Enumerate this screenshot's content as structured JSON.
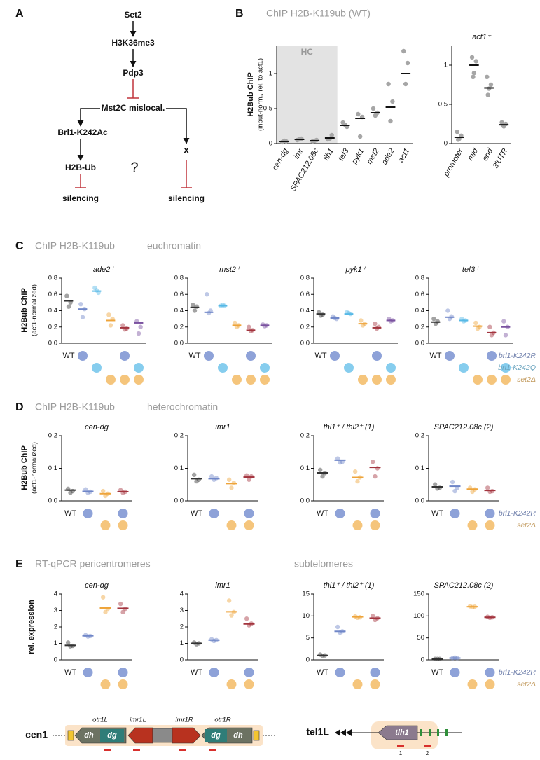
{
  "panel_a": {
    "letter": "A",
    "nodes": [
      "Set2",
      "H3K36me3",
      "Pdp3",
      "Mst2C mislocal.",
      "Brl1-K242Ac",
      "x",
      "H2B-Ub",
      "?",
      "silencing",
      "silencing"
    ]
  },
  "panel_b": {
    "letter": "B",
    "title": "ChIP H2B-K119ub (WT)",
    "ylabel": "H2Bub ChIP",
    "ylabel2": "(input-norm., rel. to act1)"
  },
  "panel_c": {
    "letter": "C",
    "title": "ChIP H2B-K119ub",
    "subtitle": "euchromatin",
    "ylabel": "H2Bub ChIP",
    "ylabel2": "(act1-normalized)",
    "genotypes": [
      {
        "name": "brl1-K242R",
        "color": "#8ea2d8"
      },
      {
        "name": "brl1-K242Q",
        "color": "#86cdee"
      },
      {
        "name": "set2Δ",
        "color": "#f5c57c"
      }
    ]
  },
  "panel_d": {
    "letter": "D",
    "title": "ChIP H2B-K119ub",
    "subtitle": "heterochromatin",
    "ylabel": "H2Bub ChIP",
    "ylabel2": "(act1-normalized)",
    "genotypes": [
      {
        "name": "brl1-K242R",
        "color": "#8ea2d8"
      },
      {
        "name": "set2Δ",
        "color": "#f5c57c"
      }
    ]
  },
  "panel_e": {
    "letter": "E",
    "title": "RT-qPCR pericentromeres",
    "subtitle": "subtelomeres",
    "ylabel": "rel. expression",
    "genotypes": [
      {
        "name": "brl1-K242R",
        "color": "#8ea2d8"
      },
      {
        "name": "set2Δ",
        "color": "#f5c57c"
      }
    ],
    "cen1": {
      "label": "cen1",
      "otr1L": "otr1L",
      "imr1L": "imr1L",
      "imr1R": "imr1R",
      "otr1R": "otr1R",
      "dh_left": "dh",
      "dg_left": "dg",
      "dg_right": "dg",
      "dh_right": "dh"
    },
    "tel1L": {
      "label": "tel1L",
      "gene": "tlh1",
      "site1": "1",
      "site2": "2"
    }
  },
  "chart_data": [
    {
      "type": "dot",
      "categories": [
        "cen-dg",
        "imr",
        "SPAC212.08c",
        "tlh1",
        "tef3",
        "pyk1",
        "mst2",
        "ade2",
        "act1"
      ],
      "values": [
        0.03,
        0.06,
        0.04,
        0.08,
        0.26,
        0.36,
        0.44,
        0.52,
        1.0
      ],
      "points": [
        [
          0.02,
          0.03,
          0.04
        ],
        [
          0.05,
          0.07,
          0.06
        ],
        [
          0.03,
          0.05,
          0.04
        ],
        [
          0.06,
          0.12,
          0.07
        ],
        [
          0.3,
          0.24,
          0.27
        ],
        [
          0.42,
          0.38,
          0.1
        ],
        [
          0.5,
          0.44,
          0.4
        ],
        [
          0.85,
          0.6,
          0.32
        ],
        [
          1.32,
          1.15,
          0.85
        ]
      ],
      "color": "#111111",
      "point_color": "#a6a6a6",
      "ylim": [
        0,
        1.4
      ],
      "yticks": [
        0,
        0.5,
        1
      ],
      "shaded": {
        "label": "HC",
        "span": [
          0,
          3
        ]
      }
    },
    {
      "type": "dot",
      "title": "act1⁺",
      "categories": [
        "promoter",
        "mid",
        "end",
        "3'UTR"
      ],
      "values": [
        0.08,
        1.0,
        0.71,
        0.24
      ],
      "points": [
        [
          0.15,
          0.1,
          0.06,
          0.05
        ],
        [
          1.1,
          1.05,
          0.9,
          0.85
        ],
        [
          0.85,
          0.75,
          0.7,
          0.62
        ],
        [
          0.27,
          0.25,
          0.22,
          0.23
        ]
      ],
      "color": "#111111",
      "point_color": "#a6a6a6",
      "ylim": [
        0,
        1.25
      ],
      "yticks": [
        0,
        0.5,
        1
      ]
    },
    {
      "type": "dot",
      "title": "ade2⁺",
      "categories": [
        "WT",
        null,
        null,
        null,
        null,
        null
      ],
      "values": [
        0.52,
        0.42,
        0.64,
        0.28,
        0.19,
        0.25
      ],
      "points": [
        [
          0.58,
          0.5,
          0.45
        ],
        [
          0.48,
          0.42,
          0.32
        ],
        [
          0.68,
          0.62,
          0.65
        ],
        [
          0.35,
          0.3,
          0.22
        ],
        [
          0.22,
          0.18,
          0.17
        ],
        [
          0.27,
          0.2,
          0.12
        ]
      ],
      "colors": [
        "#333333",
        "#6f86c8",
        "#56b9e6",
        "#eea43a",
        "#a3343e",
        "#7a52a0"
      ],
      "ylim": [
        0,
        0.8
      ],
      "yticks": [
        {
          "value": 0,
          "label": "0.0"
        },
        0.2,
        0.4,
        0.6,
        0.8
      ],
      "genotype_marks": [
        [
          false,
          true,
          false,
          false,
          true,
          false
        ],
        [
          false,
          false,
          true,
          false,
          false,
          true
        ],
        [
          false,
          false,
          false,
          true,
          true,
          true
        ]
      ]
    },
    {
      "type": "dot",
      "title": "mst2⁺",
      "categories": [
        "WT",
        null,
        null,
        null,
        null,
        null
      ],
      "values": [
        0.44,
        0.38,
        0.46,
        0.22,
        0.16,
        0.22
      ],
      "points": [
        [
          0.47,
          0.45,
          0.4
        ],
        [
          0.6,
          0.4,
          0.37
        ],
        [
          0.46,
          0.46,
          0.47
        ],
        [
          0.25,
          0.22,
          0.2
        ],
        [
          0.2,
          0.16,
          0.15
        ],
        [
          0.23,
          0.22,
          0.21
        ]
      ],
      "colors": [
        "#333333",
        "#6f86c8",
        "#56b9e6",
        "#eea43a",
        "#a3343e",
        "#7a52a0"
      ],
      "ylim": [
        0,
        0.8
      ],
      "yticks": [
        {
          "value": 0,
          "label": "0.0"
        },
        0.2,
        0.4,
        0.6,
        0.8
      ],
      "genotype_marks": [
        [
          false,
          true,
          false,
          false,
          true,
          false
        ],
        [
          false,
          false,
          true,
          false,
          false,
          true
        ],
        [
          false,
          false,
          false,
          true,
          true,
          true
        ]
      ]
    },
    {
      "type": "dot",
      "title": "pyk1⁺",
      "categories": [
        "WT",
        null,
        null,
        null,
        null,
        null
      ],
      "values": [
        0.36,
        0.31,
        0.36,
        0.24,
        0.19,
        0.28
      ],
      "points": [
        [
          0.38,
          0.35,
          0.34
        ],
        [
          0.33,
          0.3,
          0.31
        ],
        [
          0.38,
          0.36,
          0.37
        ],
        [
          0.28,
          0.24,
          0.22
        ],
        [
          0.24,
          0.2,
          0.18
        ],
        [
          0.3,
          0.28,
          0.27
        ]
      ],
      "colors": [
        "#333333",
        "#6f86c8",
        "#56b9e6",
        "#eea43a",
        "#a3343e",
        "#7a52a0"
      ],
      "ylim": [
        0,
        0.8
      ],
      "yticks": [
        {
          "value": 0,
          "label": "0.0"
        },
        0.2,
        0.4,
        0.6,
        0.8
      ],
      "genotype_marks": [
        [
          false,
          true,
          false,
          false,
          true,
          false
        ],
        [
          false,
          false,
          true,
          false,
          false,
          true
        ],
        [
          false,
          false,
          false,
          true,
          true,
          true
        ]
      ]
    },
    {
      "type": "dot",
      "title": "tef3⁺",
      "categories": [
        "WT",
        null,
        null,
        null,
        null,
        null
      ],
      "values": [
        0.26,
        0.32,
        0.28,
        0.21,
        0.13,
        0.2
      ],
      "points": [
        [
          0.3,
          0.27,
          0.24
        ],
        [
          0.4,
          0.33,
          0.3
        ],
        [
          0.3,
          0.28,
          0.27
        ],
        [
          0.25,
          0.2,
          0.18
        ],
        [
          0.2,
          0.13,
          0.1
        ],
        [
          0.27,
          0.2,
          0.1
        ]
      ],
      "colors": [
        "#333333",
        "#6f86c8",
        "#56b9e6",
        "#eea43a",
        "#a3343e",
        "#7a52a0"
      ],
      "ylim": [
        0,
        0.8
      ],
      "yticks": [
        {
          "value": 0,
          "label": "0.0"
        },
        0.2,
        0.4,
        0.6,
        0.8
      ],
      "genotype_marks": [
        [
          false,
          true,
          false,
          false,
          true,
          false
        ],
        [
          false,
          false,
          true,
          false,
          false,
          true
        ],
        [
          false,
          false,
          false,
          true,
          true,
          true
        ]
      ]
    },
    {
      "type": "dot",
      "title": "cen-dg",
      "categories": [
        "WT",
        null,
        null,
        null
      ],
      "values": [
        0.033,
        0.029,
        0.022,
        0.028
      ],
      "points": [
        [
          0.037,
          0.03,
          0.025
        ],
        [
          0.035,
          0.028,
          0.025
        ],
        [
          0.03,
          0.022,
          0.015
        ],
        [
          0.033,
          0.028,
          0.025
        ]
      ],
      "colors": [
        "#333333",
        "#6f86c8",
        "#eea43a",
        "#a3343e"
      ],
      "ylim": [
        0,
        0.2
      ],
      "yticks": [
        {
          "value": 0,
          "label": "0.0"
        },
        0.1,
        0.2
      ],
      "genotype_marks": [
        [
          false,
          true,
          false,
          true
        ],
        [
          false,
          false,
          true,
          true
        ]
      ]
    },
    {
      "type": "dot",
      "title": "imr1",
      "categories": [
        "WT",
        null,
        null,
        null
      ],
      "values": [
        0.068,
        0.068,
        0.053,
        0.073
      ],
      "points": [
        [
          0.08,
          0.065,
          0.06
        ],
        [
          0.075,
          0.07,
          0.065
        ],
        [
          0.065,
          0.055,
          0.04
        ],
        [
          0.078,
          0.075,
          0.065
        ]
      ],
      "colors": [
        "#333333",
        "#6f86c8",
        "#eea43a",
        "#a3343e"
      ],
      "ylim": [
        0,
        0.2
      ],
      "yticks": [
        {
          "value": 0,
          "label": "0.0"
        },
        0.1,
        0.2
      ],
      "genotype_marks": [
        [
          false,
          true,
          false,
          true
        ],
        [
          false,
          false,
          true,
          true
        ]
      ]
    },
    {
      "type": "dot",
      "title": "thl1⁺ / thl2⁺ (1)",
      "categories": [
        "WT",
        null,
        null,
        null
      ],
      "values": [
        0.086,
        0.125,
        0.072,
        0.103
      ],
      "points": [
        [
          0.095,
          0.085,
          0.075
        ],
        [
          0.13,
          0.12,
          0.118
        ],
        [
          0.09,
          0.072,
          0.06
        ],
        [
          0.12,
          0.1,
          0.075
        ]
      ],
      "colors": [
        "#333333",
        "#6f86c8",
        "#eea43a",
        "#a3343e"
      ],
      "ylim": [
        0,
        0.2
      ],
      "yticks": [
        {
          "value": 0,
          "label": "0.0"
        },
        0.1,
        0.2
      ],
      "genotype_marks": [
        [
          false,
          true,
          false,
          true
        ],
        [
          false,
          false,
          true,
          true
        ]
      ]
    },
    {
      "type": "dot",
      "title": "SPAC212.08c (2)",
      "categories": [
        "WT",
        null,
        null,
        null
      ],
      "values": [
        0.043,
        0.045,
        0.036,
        0.032
      ],
      "points": [
        [
          0.05,
          0.04,
          0.038
        ],
        [
          0.058,
          0.04,
          0.03
        ],
        [
          0.04,
          0.035,
          0.028
        ],
        [
          0.04,
          0.03,
          0.028
        ]
      ],
      "colors": [
        "#333333",
        "#6f86c8",
        "#eea43a",
        "#a3343e"
      ],
      "ylim": [
        0,
        0.2
      ],
      "yticks": [
        {
          "value": 0,
          "label": "0.0"
        },
        0.1,
        0.2
      ],
      "genotype_marks": [
        [
          false,
          true,
          false,
          true
        ],
        [
          false,
          false,
          true,
          true
        ]
      ]
    },
    {
      "type": "dot",
      "title": "cen-dg",
      "categories": [
        "WT",
        null,
        null,
        null
      ],
      "values": [
        0.88,
        1.46,
        3.15,
        3.13
      ],
      "points": [
        [
          1.05,
          0.85,
          0.82
        ],
        [
          1.5,
          1.45,
          1.42
        ],
        [
          3.8,
          3.1,
          2.9
        ],
        [
          3.4,
          3.1,
          2.9
        ]
      ],
      "colors": [
        "#333333",
        "#6f86c8",
        "#eea43a",
        "#a3343e"
      ],
      "ylim": [
        0,
        4
      ],
      "yticks": [
        0,
        1,
        2,
        3,
        4
      ],
      "genotype_marks": [
        [
          false,
          true,
          false,
          true
        ],
        [
          false,
          false,
          true,
          true
        ]
      ]
    },
    {
      "type": "dot",
      "title": "imr1",
      "categories": [
        "WT",
        null,
        null,
        null
      ],
      "values": [
        1.0,
        1.2,
        2.92,
        2.18
      ],
      "points": [
        [
          1.05,
          1.0,
          0.95
        ],
        [
          1.25,
          1.2,
          1.15
        ],
        [
          3.6,
          2.9,
          2.7
        ],
        [
          2.5,
          2.2,
          2.1
        ]
      ],
      "colors": [
        "#333333",
        "#6f86c8",
        "#eea43a",
        "#a3343e"
      ],
      "ylim": [
        0,
        4
      ],
      "yticks": [
        0,
        1,
        2,
        3,
        4
      ],
      "genotype_marks": [
        [
          false,
          true,
          false,
          true
        ],
        [
          false,
          false,
          true,
          true
        ]
      ]
    },
    {
      "type": "dot",
      "title": "thl1⁺ / thl2⁺ (1)",
      "categories": [
        "WT",
        null,
        null,
        null
      ],
      "values": [
        1.0,
        6.5,
        9.8,
        9.5
      ],
      "points": [
        [
          1.2,
          1.0,
          0.9
        ],
        [
          7.5,
          6.5,
          6.2
        ],
        [
          9.9,
          9.7,
          9.6
        ],
        [
          10,
          9.5,
          9.1
        ]
      ],
      "colors": [
        "#333333",
        "#6f86c8",
        "#eea43a",
        "#a3343e"
      ],
      "ylim": [
        0,
        15
      ],
      "yticks": [
        0,
        5,
        10,
        15
      ],
      "genotype_marks": [
        [
          false,
          true,
          false,
          true
        ],
        [
          false,
          false,
          true,
          true
        ]
      ]
    },
    {
      "type": "dot",
      "title": "SPAC212.08c (2)",
      "categories": [
        "WT",
        null,
        null,
        null
      ],
      "values": [
        2,
        4,
        121,
        97
      ],
      "points": [
        [
          2,
          2,
          2
        ],
        [
          4,
          4,
          5
        ],
        [
          122,
          121,
          120
        ],
        [
          98,
          97,
          96
        ]
      ],
      "colors": [
        "#333333",
        "#6f86c8",
        "#eea43a",
        "#a3343e"
      ],
      "ylim": [
        0,
        150
      ],
      "yticks": [
        0,
        50,
        100,
        150
      ],
      "genotype_marks": [
        [
          false,
          true,
          false,
          true
        ],
        [
          false,
          false,
          true,
          true
        ]
      ]
    }
  ]
}
